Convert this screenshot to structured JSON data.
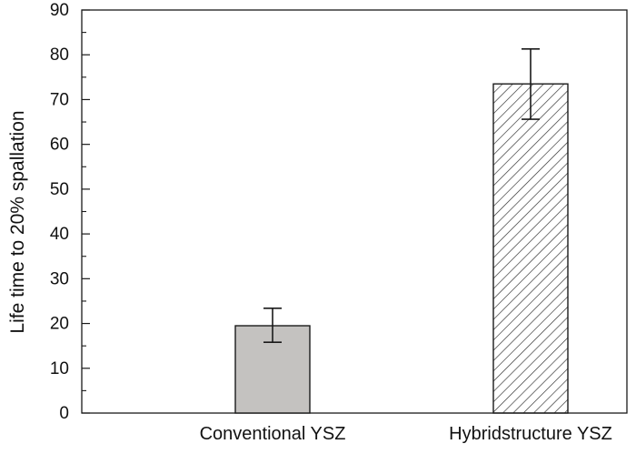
{
  "chart_data": {
    "type": "bar",
    "title": "",
    "xlabel": "",
    "ylabel": "Life time to 20% spallation",
    "ylim": [
      0,
      90
    ],
    "yticks": [
      0,
      10,
      20,
      30,
      40,
      50,
      60,
      70,
      80,
      90
    ],
    "grid": false,
    "legend": "none",
    "categories": [
      "Conventional YSZ",
      "Hybridstructure YSZ"
    ],
    "values": [
      19.5,
      73.5
    ],
    "error_low": [
      15.8,
      65.6
    ],
    "error_high": [
      23.4,
      81.3
    ],
    "fills": [
      "solid-gray",
      "diagonal-hatch"
    ],
    "colors": {
      "gray_bar": "#c4c2c0",
      "edge": "#1a1a1a"
    }
  }
}
